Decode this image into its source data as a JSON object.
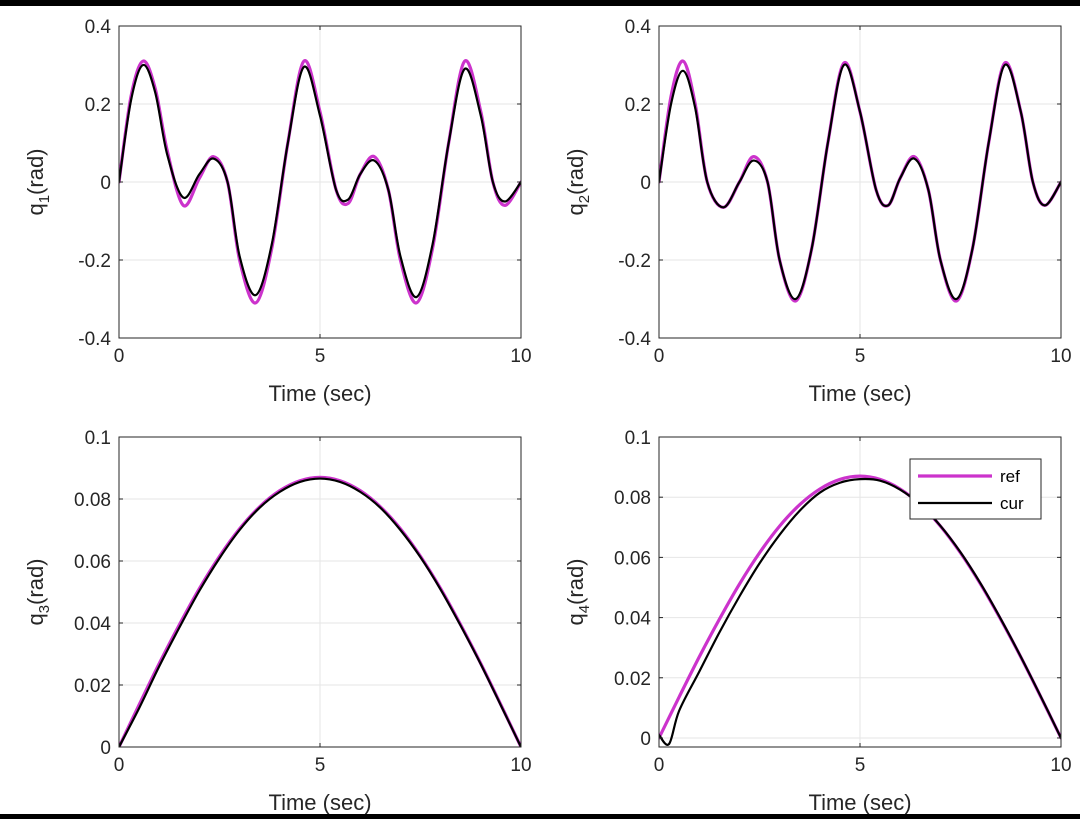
{
  "colors": {
    "ref": "#CC33CC",
    "cur": "#000000",
    "grid": "#E6E6E6",
    "axis": "#262626"
  },
  "legend": {
    "ref_label": "ref",
    "cur_label": "cur",
    "placement": "top-right of q4 subplot"
  },
  "chart_data": [
    {
      "type": "line",
      "xlabel": "Time (sec)",
      "ylabel": {
        "base": "q",
        "sub": "1",
        "unit": "(rad)"
      },
      "xlim": [
        0,
        10
      ],
      "ylim": [
        -0.4,
        0.4
      ],
      "xticks": [
        0,
        5,
        10
      ],
      "xtick_labels": [
        "0",
        "5",
        "10"
      ],
      "yticks": [
        -0.4,
        -0.2,
        0,
        0.2,
        0.4
      ],
      "ytick_labels": [
        "-0.4",
        "-0.2",
        "0",
        "0.2",
        "0.4"
      ],
      "grid": true,
      "series": [
        {
          "name": "ref",
          "x": [
            0,
            0.3,
            0.6,
            0.9,
            1.2,
            1.6,
            2.0,
            2.35,
            2.7,
            3.0,
            3.4,
            3.8,
            4.2,
            4.6,
            5.0,
            5.4,
            5.7,
            6.0,
            6.35,
            6.7,
            7.0,
            7.4,
            7.8,
            8.2,
            8.6,
            9.0,
            9.3,
            9.6,
            10.0
          ],
          "y": [
            0,
            0.22,
            0.31,
            0.24,
            0.08,
            -0.06,
            0.01,
            0.065,
            0.0,
            -0.2,
            -0.31,
            -0.17,
            0.1,
            0.31,
            0.18,
            -0.02,
            -0.055,
            0.02,
            0.065,
            -0.02,
            -0.2,
            -0.31,
            -0.17,
            0.1,
            0.31,
            0.18,
            0.0,
            -0.06,
            0.0
          ]
        },
        {
          "name": "cur",
          "x": [
            0,
            0.3,
            0.6,
            0.9,
            1.2,
            1.6,
            2.0,
            2.35,
            2.7,
            3.0,
            3.4,
            3.8,
            4.2,
            4.6,
            5.0,
            5.4,
            5.7,
            6.0,
            6.35,
            6.7,
            7.0,
            7.4,
            7.8,
            8.2,
            8.6,
            9.0,
            9.3,
            9.6,
            10.0
          ],
          "y": [
            0,
            0.21,
            0.3,
            0.23,
            0.07,
            -0.04,
            0.02,
            0.06,
            0.0,
            -0.19,
            -0.29,
            -0.16,
            0.1,
            0.295,
            0.17,
            -0.02,
            -0.045,
            0.02,
            0.055,
            -0.02,
            -0.19,
            -0.295,
            -0.16,
            0.1,
            0.29,
            0.17,
            0.0,
            -0.05,
            0.0
          ]
        }
      ]
    },
    {
      "type": "line",
      "xlabel": "Time (sec)",
      "ylabel": {
        "base": "q",
        "sub": "2",
        "unit": "(rad)"
      },
      "xlim": [
        0,
        10
      ],
      "ylim": [
        -0.4,
        0.4
      ],
      "xticks": [
        0,
        5,
        10
      ],
      "xtick_labels": [
        "0",
        "5",
        "10"
      ],
      "yticks": [
        -0.4,
        -0.2,
        0,
        0.2,
        0.4
      ],
      "ytick_labels": [
        "-0.4",
        "-0.2",
        "0",
        "0.2",
        "0.4"
      ],
      "grid": true,
      "series": [
        {
          "name": "ref",
          "x": [
            0,
            0.3,
            0.6,
            0.9,
            1.2,
            1.6,
            2.0,
            2.35,
            2.7,
            3.0,
            3.4,
            3.8,
            4.2,
            4.6,
            5.0,
            5.4,
            5.7,
            6.0,
            6.35,
            6.7,
            7.0,
            7.4,
            7.8,
            8.2,
            8.6,
            9.0,
            9.3,
            9.6,
            10.0
          ],
          "y": [
            0,
            0.22,
            0.31,
            0.2,
            0.0,
            -0.065,
            0.0,
            0.065,
            0.0,
            -0.2,
            -0.305,
            -0.17,
            0.1,
            0.305,
            0.18,
            -0.02,
            -0.06,
            0.01,
            0.065,
            -0.02,
            -0.2,
            -0.305,
            -0.17,
            0.1,
            0.305,
            0.18,
            0.0,
            -0.06,
            0.0
          ]
        },
        {
          "name": "cur",
          "x": [
            0,
            0.3,
            0.6,
            0.9,
            1.2,
            1.6,
            2.0,
            2.35,
            2.7,
            3.0,
            3.4,
            3.8,
            4.2,
            4.6,
            5.0,
            5.4,
            5.7,
            6.0,
            6.35,
            6.7,
            7.0,
            7.4,
            7.8,
            8.2,
            8.6,
            9.0,
            9.3,
            9.6,
            10.0
          ],
          "y": [
            0,
            0.2,
            0.285,
            0.19,
            0.0,
            -0.065,
            0.0,
            0.055,
            0.0,
            -0.2,
            -0.3,
            -0.17,
            0.1,
            0.3,
            0.18,
            -0.02,
            -0.06,
            0.01,
            0.06,
            -0.02,
            -0.2,
            -0.3,
            -0.17,
            0.1,
            0.3,
            0.18,
            0.0,
            -0.06,
            0.0
          ]
        }
      ]
    },
    {
      "type": "line",
      "xlabel": "Time (sec)",
      "ylabel": {
        "base": "q",
        "sub": "3",
        "unit": "(rad)"
      },
      "xlim": [
        0,
        10
      ],
      "ylim": [
        0,
        0.1
      ],
      "xticks": [
        0,
        5,
        10
      ],
      "xtick_labels": [
        "0",
        "5",
        "10"
      ],
      "yticks": [
        0,
        0.02,
        0.04,
        0.06,
        0.08,
        0.1
      ],
      "ytick_labels": [
        "0",
        "0.02",
        "0.04",
        "0.06",
        "0.08",
        "0.1"
      ],
      "grid": true,
      "series": [
        {
          "name": "ref",
          "x": [
            0,
            0.5,
            1,
            1.5,
            2,
            2.5,
            3,
            3.5,
            4,
            4.5,
            5,
            5.5,
            6,
            6.5,
            7,
            7.5,
            8,
            8.5,
            9,
            9.5,
            10
          ],
          "y": [
            0,
            0.0136,
            0.0269,
            0.0394,
            0.0511,
            0.0615,
            0.0704,
            0.0775,
            0.0827,
            0.0859,
            0.087,
            0.0859,
            0.0827,
            0.0775,
            0.0704,
            0.0615,
            0.0511,
            0.0394,
            0.0269,
            0.0136,
            0
          ]
        },
        {
          "name": "cur",
          "x": [
            0,
            0.5,
            1,
            1.5,
            2,
            2.5,
            3,
            3.5,
            4,
            4.5,
            5,
            5.5,
            6,
            6.5,
            7,
            7.5,
            8,
            8.5,
            9,
            9.5,
            10
          ],
          "y": [
            0,
            0.0125,
            0.026,
            0.0385,
            0.0504,
            0.0609,
            0.07,
            0.0772,
            0.0823,
            0.0855,
            0.0866,
            0.0855,
            0.0823,
            0.0772,
            0.07,
            0.0612,
            0.0508,
            0.0391,
            0.0267,
            0.0134,
            0
          ]
        }
      ]
    },
    {
      "type": "line",
      "xlabel": "Time (sec)",
      "ylabel": {
        "base": "q",
        "sub": "4",
        "unit": "(rad)"
      },
      "xlim": [
        0,
        10
      ],
      "ylim": [
        -0.003,
        0.1
      ],
      "xticks": [
        0,
        5,
        10
      ],
      "xtick_labels": [
        "0",
        "5",
        "10"
      ],
      "yticks": [
        0,
        0.02,
        0.04,
        0.06,
        0.08,
        0.1
      ],
      "ytick_labels": [
        "0",
        "0.02",
        "0.04",
        "0.06",
        "0.08",
        "0.1"
      ],
      "grid": true,
      "legend": true,
      "series": [
        {
          "name": "ref",
          "x": [
            0,
            0.5,
            1,
            1.5,
            2,
            2.5,
            3,
            3.5,
            4,
            4.5,
            5,
            5.5,
            6,
            6.5,
            7,
            7.5,
            8,
            8.5,
            9,
            9.5,
            10
          ],
          "y": [
            0,
            0.0136,
            0.0269,
            0.0394,
            0.0511,
            0.0615,
            0.0704,
            0.0775,
            0.0827,
            0.0859,
            0.087,
            0.0859,
            0.0827,
            0.0775,
            0.0704,
            0.0615,
            0.0511,
            0.0394,
            0.0269,
            0.0136,
            0
          ]
        },
        {
          "name": "cur",
          "x": [
            0,
            0.25,
            0.5,
            1,
            1.5,
            2,
            2.5,
            3,
            3.5,
            4,
            4.5,
            5,
            5.5,
            6,
            6.5,
            7,
            7.5,
            8,
            8.5,
            9,
            9.5,
            10
          ],
          "y": [
            0.001,
            -0.002,
            0.009,
            0.022,
            0.035,
            0.047,
            0.058,
            0.0675,
            0.0755,
            0.0815,
            0.0848,
            0.086,
            0.0855,
            0.0825,
            0.0775,
            0.0705,
            0.0617,
            0.0513,
            0.0396,
            0.027,
            0.0137,
            0
          ]
        }
      ]
    }
  ]
}
